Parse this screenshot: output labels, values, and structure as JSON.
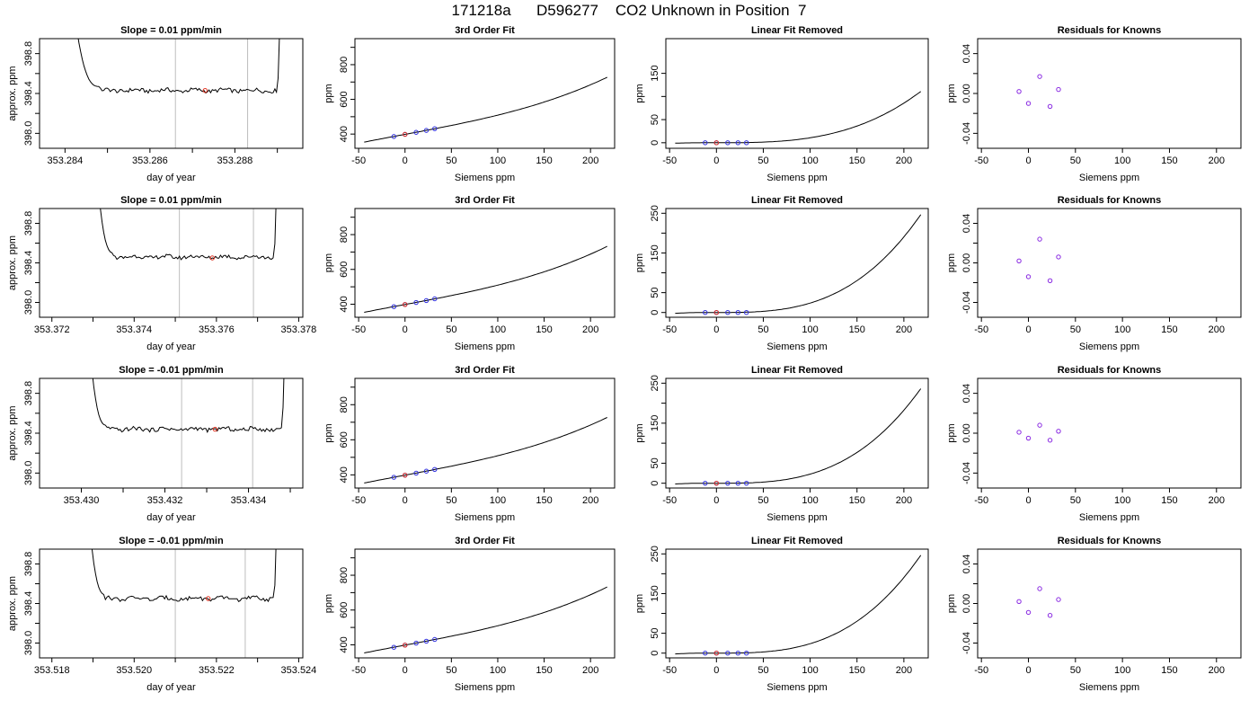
{
  "page_title": "171218a      D596277    CO2 Unknown in Position  7",
  "chart_data": [
    {
      "type": "line",
      "row": 0,
      "col": 0,
      "title": "Slope =  0.01  ppm/min",
      "xlabel": "day of year",
      "ylabel": "approx. ppm",
      "xlim": [
        353.2834,
        353.2896
      ],
      "ylim": [
        397.85,
        398.95
      ],
      "xticks": [
        353.284,
        353.285,
        353.286,
        353.287,
        353.288,
        353.289
      ],
      "xtick_labels": [
        "353.284",
        "",
        "353.286",
        "",
        "353.288",
        ""
      ],
      "yticks": [
        398.0,
        398.2,
        398.4,
        398.6,
        398.8
      ],
      "ytick_labels": [
        "398.0",
        "",
        "398.4",
        "",
        "398.8"
      ],
      "vlines": [
        353.2866,
        353.2883
      ],
      "series": [
        {
          "plateau_start": 353.2848,
          "plateau_end": 353.289,
          "level": 398.43,
          "rise_left": 353.2842,
          "rise_right": 353.2891
        }
      ],
      "marker": {
        "x": 353.2873,
        "y": 398.43
      }
    },
    {
      "type": "line",
      "row": 0,
      "col": 1,
      "title": "3rd Order Fit",
      "xlabel": "Siemens ppm",
      "ylabel": "ppm",
      "xlim": [
        -54,
        226
      ],
      "ylim": [
        318,
        950
      ],
      "xticks": [
        -50,
        0,
        50,
        100,
        150,
        200
      ],
      "xtick_labels": [
        "-50",
        "0",
        "50",
        "100",
        "150",
        "200"
      ],
      "yticks": [
        400,
        500,
        600,
        700,
        800,
        900
      ],
      "ytick_labels": [
        "400",
        "",
        "600",
        "",
        "800",
        ""
      ],
      "curve": {
        "x0": -44,
        "x1": 218,
        "a": 398.4,
        "b": 1.0,
        "c": 0.0,
        "d": 1.07e-05
      },
      "points": [
        {
          "x": -12,
          "y": 386
        },
        {
          "x": 0,
          "y": 398.4
        },
        {
          "x": 12,
          "y": 410
        },
        {
          "x": 23,
          "y": 421
        },
        {
          "x": 32,
          "y": 431
        }
      ],
      "red_point": {
        "x": 0,
        "y": 398.4
      }
    },
    {
      "type": "line",
      "row": 0,
      "col": 2,
      "title": "Linear Fit Removed",
      "xlabel": "Siemens ppm",
      "ylabel": "ppm",
      "xlim": [
        -54,
        226
      ],
      "ylim": [
        -12,
        225
      ],
      "xticks": [
        -50,
        0,
        50,
        100,
        150,
        200
      ],
      "xtick_labels": [
        "-50",
        "0",
        "50",
        "100",
        "150",
        "200"
      ],
      "yticks": [
        0,
        50,
        100,
        150
      ],
      "ytick_labels": [
        "0",
        "50",
        "",
        "150"
      ],
      "curve": {
        "x0": -44,
        "x1": 218,
        "a": 0.0,
        "b": 0.0,
        "c": 0.0,
        "d": 1.07e-05
      },
      "points": [
        {
          "x": -12,
          "y": 0
        },
        {
          "x": 0,
          "y": 0
        },
        {
          "x": 12,
          "y": 0
        },
        {
          "x": 23,
          "y": 0
        },
        {
          "x": 32,
          "y": 0
        }
      ],
      "red_point": {
        "x": 0,
        "y": 0
      }
    },
    {
      "type": "scatter",
      "row": 0,
      "col": 3,
      "title": "Residuals for Knowns",
      "xlabel": "Siemens ppm",
      "ylabel": "ppm",
      "xlim": [
        -54,
        226
      ],
      "ylim": [
        -0.055,
        0.055
      ],
      "xticks": [
        -50,
        0,
        50,
        100,
        150,
        200
      ],
      "xtick_labels": [
        "-50",
        "0",
        "50",
        "100",
        "150",
        "200"
      ],
      "yticks": [
        -0.04,
        -0.02,
        0.0,
        0.02,
        0.04
      ],
      "ytick_labels": [
        "-0.04",
        "",
        "0.00",
        "",
        "0.04"
      ],
      "points": [
        {
          "x": -10,
          "y": 0.002
        },
        {
          "x": 0,
          "y": -0.01
        },
        {
          "x": 12,
          "y": 0.017
        },
        {
          "x": 23,
          "y": -0.013
        },
        {
          "x": 32,
          "y": 0.004
        }
      ]
    },
    {
      "type": "line",
      "row": 1,
      "col": 0,
      "title": "Slope =  0.01  ppm/min",
      "xlabel": "day of year",
      "ylabel": "approx. ppm",
      "xlim": [
        353.3717,
        353.3781
      ],
      "ylim": [
        397.85,
        398.95
      ],
      "xticks": [
        353.372,
        353.373,
        353.374,
        353.375,
        353.376,
        353.377,
        353.378
      ],
      "xtick_labels": [
        "353.372",
        "",
        "353.374",
        "",
        "353.376",
        "",
        "353.378"
      ],
      "yticks": [
        398.0,
        398.2,
        398.4,
        398.6,
        398.8
      ],
      "ytick_labels": [
        "398.0",
        "",
        "398.4",
        "",
        "398.8"
      ],
      "vlines": [
        353.3751,
        353.3769
      ],
      "series": [
        {
          "plateau_start": 353.3735,
          "plateau_end": 353.3774,
          "level": 398.46,
          "rise_left": 353.3731,
          "rise_right": 353.3775
        }
      ],
      "marker": {
        "x": 353.3759,
        "y": 398.45
      }
    },
    {
      "type": "line",
      "row": 1,
      "col": 1,
      "title": "3rd Order Fit",
      "xlabel": "Siemens ppm",
      "ylabel": "ppm",
      "xlim": [
        -54,
        226
      ],
      "ylim": [
        325,
        950
      ],
      "xticks": [
        -50,
        0,
        50,
        100,
        150,
        200
      ],
      "xtick_labels": [
        "-50",
        "0",
        "50",
        "100",
        "150",
        "200"
      ],
      "yticks": [
        400,
        500,
        600,
        700,
        800,
        900
      ],
      "ytick_labels": [
        "400",
        "",
        "600",
        "",
        "800",
        ""
      ],
      "curve": {
        "x0": -44,
        "x1": 218,
        "a": 398.4,
        "b": 1.0,
        "c": 0.0,
        "d": 1.12e-05
      },
      "points": [
        {
          "x": -12,
          "y": 386
        },
        {
          "x": 0,
          "y": 398.4
        },
        {
          "x": 12,
          "y": 410
        },
        {
          "x": 23,
          "y": 421
        },
        {
          "x": 32,
          "y": 431
        }
      ],
      "red_point": {
        "x": 0,
        "y": 398.4
      }
    },
    {
      "type": "line",
      "row": 1,
      "col": 2,
      "title": "Linear Fit Removed",
      "xlabel": "Siemens ppm",
      "ylabel": "ppm",
      "xlim": [
        -54,
        226
      ],
      "ylim": [
        -12,
        262
      ],
      "xticks": [
        -50,
        0,
        50,
        100,
        150,
        200,
        250
      ],
      "xtick_labels": [
        "-50",
        "0",
        "50",
        "100",
        "150",
        "200",
        ""
      ],
      "yticks": [
        0,
        50,
        100,
        150,
        200,
        250
      ],
      "ytick_labels": [
        "0",
        "50",
        "",
        "150",
        "",
        "250"
      ],
      "curve": {
        "x0": -44,
        "x1": 218,
        "a": 0.0,
        "b": 0.0,
        "c": 0.0,
        "d": 2.38e-05
      },
      "points": [
        {
          "x": -12,
          "y": 0
        },
        {
          "x": 0,
          "y": 0
        },
        {
          "x": 12,
          "y": 0
        },
        {
          "x": 23,
          "y": 0
        },
        {
          "x": 32,
          "y": 0
        }
      ],
      "red_point": {
        "x": 0,
        "y": 0
      }
    },
    {
      "type": "scatter",
      "row": 1,
      "col": 3,
      "title": "Residuals for Knowns",
      "xlabel": "Siemens ppm",
      "ylabel": "ppm",
      "xlim": [
        -54,
        226
      ],
      "ylim": [
        -0.055,
        0.055
      ],
      "xticks": [
        -50,
        0,
        50,
        100,
        150,
        200
      ],
      "xtick_labels": [
        "-50",
        "0",
        "50",
        "100",
        "150",
        "200"
      ],
      "yticks": [
        -0.04,
        -0.02,
        0.0,
        0.02,
        0.04
      ],
      "ytick_labels": [
        "-0.04",
        "",
        "0.00",
        "",
        "0.04"
      ],
      "points": [
        {
          "x": -10,
          "y": 0.002
        },
        {
          "x": 0,
          "y": -0.014
        },
        {
          "x": 12,
          "y": 0.024
        },
        {
          "x": 23,
          "y": -0.018
        },
        {
          "x": 32,
          "y": 0.006
        }
      ]
    },
    {
      "type": "line",
      "row": 2,
      "col": 0,
      "title": "Slope =  -0.01  ppm/min",
      "xlabel": "day of year",
      "ylabel": "approx. ppm",
      "xlim": [
        353.429,
        353.4353
      ],
      "ylim": [
        397.85,
        398.95
      ],
      "xticks": [
        353.43,
        353.431,
        353.432,
        353.433,
        353.434,
        353.435
      ],
      "xtick_labels": [
        "353.430",
        "",
        "353.432",
        "",
        "353.434",
        ""
      ],
      "yticks": [
        398.0,
        398.2,
        398.4,
        398.6,
        398.8
      ],
      "ytick_labels": [
        "398.0",
        "",
        "398.4",
        "",
        "398.8"
      ],
      "vlines": [
        353.4324,
        353.4341
      ],
      "series": [
        {
          "plateau_start": 353.4306,
          "plateau_end": 353.4348,
          "level": 398.44,
          "rise_left": 353.4302,
          "rise_right": 353.4349
        }
      ],
      "marker": {
        "x": 353.4332,
        "y": 398.44
      }
    },
    {
      "type": "line",
      "row": 2,
      "col": 1,
      "title": "3rd Order Fit",
      "xlabel": "Siemens ppm",
      "ylabel": "ppm",
      "xlim": [
        -54,
        226
      ],
      "ylim": [
        325,
        950
      ],
      "xticks": [
        -50,
        0,
        50,
        100,
        150,
        200
      ],
      "xtick_labels": [
        "-50",
        "0",
        "50",
        "100",
        "150",
        "200"
      ],
      "yticks": [
        400,
        500,
        600,
        700,
        800,
        900
      ],
      "ytick_labels": [
        "400",
        "",
        "600",
        "",
        "800",
        ""
      ],
      "curve": {
        "x0": -44,
        "x1": 218,
        "a": 398.4,
        "b": 1.0,
        "c": 0.0,
        "d": 1.07e-05
      },
      "points": [
        {
          "x": -12,
          "y": 386
        },
        {
          "x": 0,
          "y": 398.4
        },
        {
          "x": 12,
          "y": 410
        },
        {
          "x": 23,
          "y": 421
        },
        {
          "x": 32,
          "y": 431
        }
      ],
      "red_point": {
        "x": 0,
        "y": 398.4
      }
    },
    {
      "type": "line",
      "row": 2,
      "col": 2,
      "title": "Linear Fit Removed",
      "xlabel": "Siemens ppm",
      "ylabel": "ppm",
      "xlim": [
        -54,
        226
      ],
      "ylim": [
        -12,
        262
      ],
      "xticks": [
        -50,
        0,
        50,
        100,
        150,
        200
      ],
      "xtick_labels": [
        "-50",
        "0",
        "50",
        "100",
        "150",
        "200"
      ],
      "yticks": [
        0,
        50,
        100,
        150,
        200,
        250
      ],
      "ytick_labels": [
        "0",
        "50",
        "",
        "150",
        "",
        "250"
      ],
      "curve": {
        "x0": -44,
        "x1": 218,
        "a": 0.0,
        "b": 0.0,
        "c": 0.0,
        "d": 2.28e-05
      },
      "points": [
        {
          "x": -12,
          "y": 0
        },
        {
          "x": 0,
          "y": 0
        },
        {
          "x": 12,
          "y": 0
        },
        {
          "x": 23,
          "y": 0
        },
        {
          "x": 32,
          "y": 0
        }
      ],
      "red_point": {
        "x": 0,
        "y": 0
      }
    },
    {
      "type": "scatter",
      "row": 2,
      "col": 3,
      "title": "Residuals for Knowns",
      "xlabel": "Siemens ppm",
      "ylabel": "ppm",
      "xlim": [
        -54,
        226
      ],
      "ylim": [
        -0.055,
        0.055
      ],
      "xticks": [
        -50,
        0,
        50,
        100,
        150,
        200
      ],
      "xtick_labels": [
        "-50",
        "0",
        "50",
        "100",
        "150",
        "200"
      ],
      "yticks": [
        -0.04,
        -0.02,
        0.0,
        0.02,
        0.04
      ],
      "ytick_labels": [
        "-0.04",
        "",
        "0.00",
        "",
        "0.04"
      ],
      "points": [
        {
          "x": -10,
          "y": 0.001
        },
        {
          "x": 0,
          "y": -0.005
        },
        {
          "x": 12,
          "y": 0.008
        },
        {
          "x": 23,
          "y": -0.007
        },
        {
          "x": 32,
          "y": 0.002
        }
      ]
    },
    {
      "type": "line",
      "row": 3,
      "col": 0,
      "title": "Slope =  -0.01  ppm/min",
      "xlabel": "day of year",
      "ylabel": "approx. ppm",
      "xlim": [
        353.5177,
        353.5241
      ],
      "ylim": [
        397.85,
        398.95
      ],
      "xticks": [
        353.518,
        353.519,
        353.52,
        353.521,
        353.522,
        353.523,
        353.524
      ],
      "xtick_labels": [
        "353.518",
        "",
        "353.520",
        "",
        "353.522",
        "",
        "353.524"
      ],
      "yticks": [
        398.0,
        398.2,
        398.4,
        398.6,
        398.8
      ],
      "ytick_labels": [
        "398.0",
        "",
        "398.4",
        "",
        "398.8"
      ],
      "vlines": [
        353.521,
        353.5227
      ],
      "series": [
        {
          "plateau_start": 353.5193,
          "plateau_end": 353.5234,
          "level": 398.45,
          "rise_left": 353.5189,
          "rise_right": 353.5235
        }
      ],
      "marker": {
        "x": 353.5218,
        "y": 398.45
      }
    },
    {
      "type": "line",
      "row": 3,
      "col": 1,
      "title": "3rd Order Fit",
      "xlabel": "Siemens ppm",
      "ylabel": "ppm",
      "xlim": [
        -54,
        226
      ],
      "ylim": [
        325,
        950
      ],
      "xticks": [
        -50,
        0,
        50,
        100,
        150,
        200
      ],
      "xtick_labels": [
        "-50",
        "0",
        "50",
        "100",
        "150",
        "200"
      ],
      "yticks": [
        400,
        500,
        600,
        700,
        800,
        900
      ],
      "ytick_labels": [
        "400",
        "",
        "600",
        "",
        "800",
        ""
      ],
      "curve": {
        "x0": -44,
        "x1": 218,
        "a": 398.4,
        "b": 1.0,
        "c": 0.0,
        "d": 1.12e-05
      },
      "points": [
        {
          "x": -12,
          "y": 386
        },
        {
          "x": 0,
          "y": 398.4
        },
        {
          "x": 12,
          "y": 410
        },
        {
          "x": 23,
          "y": 421
        },
        {
          "x": 32,
          "y": 431
        }
      ],
      "red_point": {
        "x": 0,
        "y": 398.4
      }
    },
    {
      "type": "line",
      "row": 3,
      "col": 2,
      "title": "Linear Fit Removed",
      "xlabel": "Siemens ppm",
      "ylabel": "ppm",
      "xlim": [
        -54,
        226
      ],
      "ylim": [
        -12,
        262
      ],
      "xticks": [
        -50,
        0,
        50,
        100,
        150,
        200
      ],
      "xtick_labels": [
        "-50",
        "0",
        "50",
        "100",
        "150",
        "200"
      ],
      "yticks": [
        0,
        50,
        100,
        150,
        200,
        250
      ],
      "ytick_labels": [
        "0",
        "50",
        "",
        "150",
        "",
        "250"
      ],
      "curve": {
        "x0": -44,
        "x1": 218,
        "a": 0.0,
        "b": 0.0,
        "c": 0.0,
        "d": 2.38e-05
      },
      "points": [
        {
          "x": -12,
          "y": 0
        },
        {
          "x": 0,
          "y": 0
        },
        {
          "x": 12,
          "y": 0
        },
        {
          "x": 23,
          "y": 0
        },
        {
          "x": 32,
          "y": 0
        }
      ],
      "red_point": {
        "x": 0,
        "y": 0
      }
    },
    {
      "type": "scatter",
      "row": 3,
      "col": 3,
      "title": "Residuals for Knowns",
      "xlabel": "Siemens ppm",
      "ylabel": "ppm",
      "xlim": [
        -54,
        226
      ],
      "ylim": [
        -0.055,
        0.055
      ],
      "xticks": [
        -50,
        0,
        50,
        100,
        150,
        200
      ],
      "xtick_labels": [
        "-50",
        "0",
        "50",
        "100",
        "150",
        "200"
      ],
      "yticks": [
        -0.04,
        -0.02,
        0.0,
        0.02,
        0.04
      ],
      "ytick_labels": [
        "-0.04",
        "",
        "0.00",
        "",
        "0.04"
      ],
      "points": [
        {
          "x": -10,
          "y": 0.002
        },
        {
          "x": 0,
          "y": -0.009
        },
        {
          "x": 12,
          "y": 0.015
        },
        {
          "x": 23,
          "y": -0.012
        },
        {
          "x": 32,
          "y": 0.004
        }
      ]
    }
  ]
}
